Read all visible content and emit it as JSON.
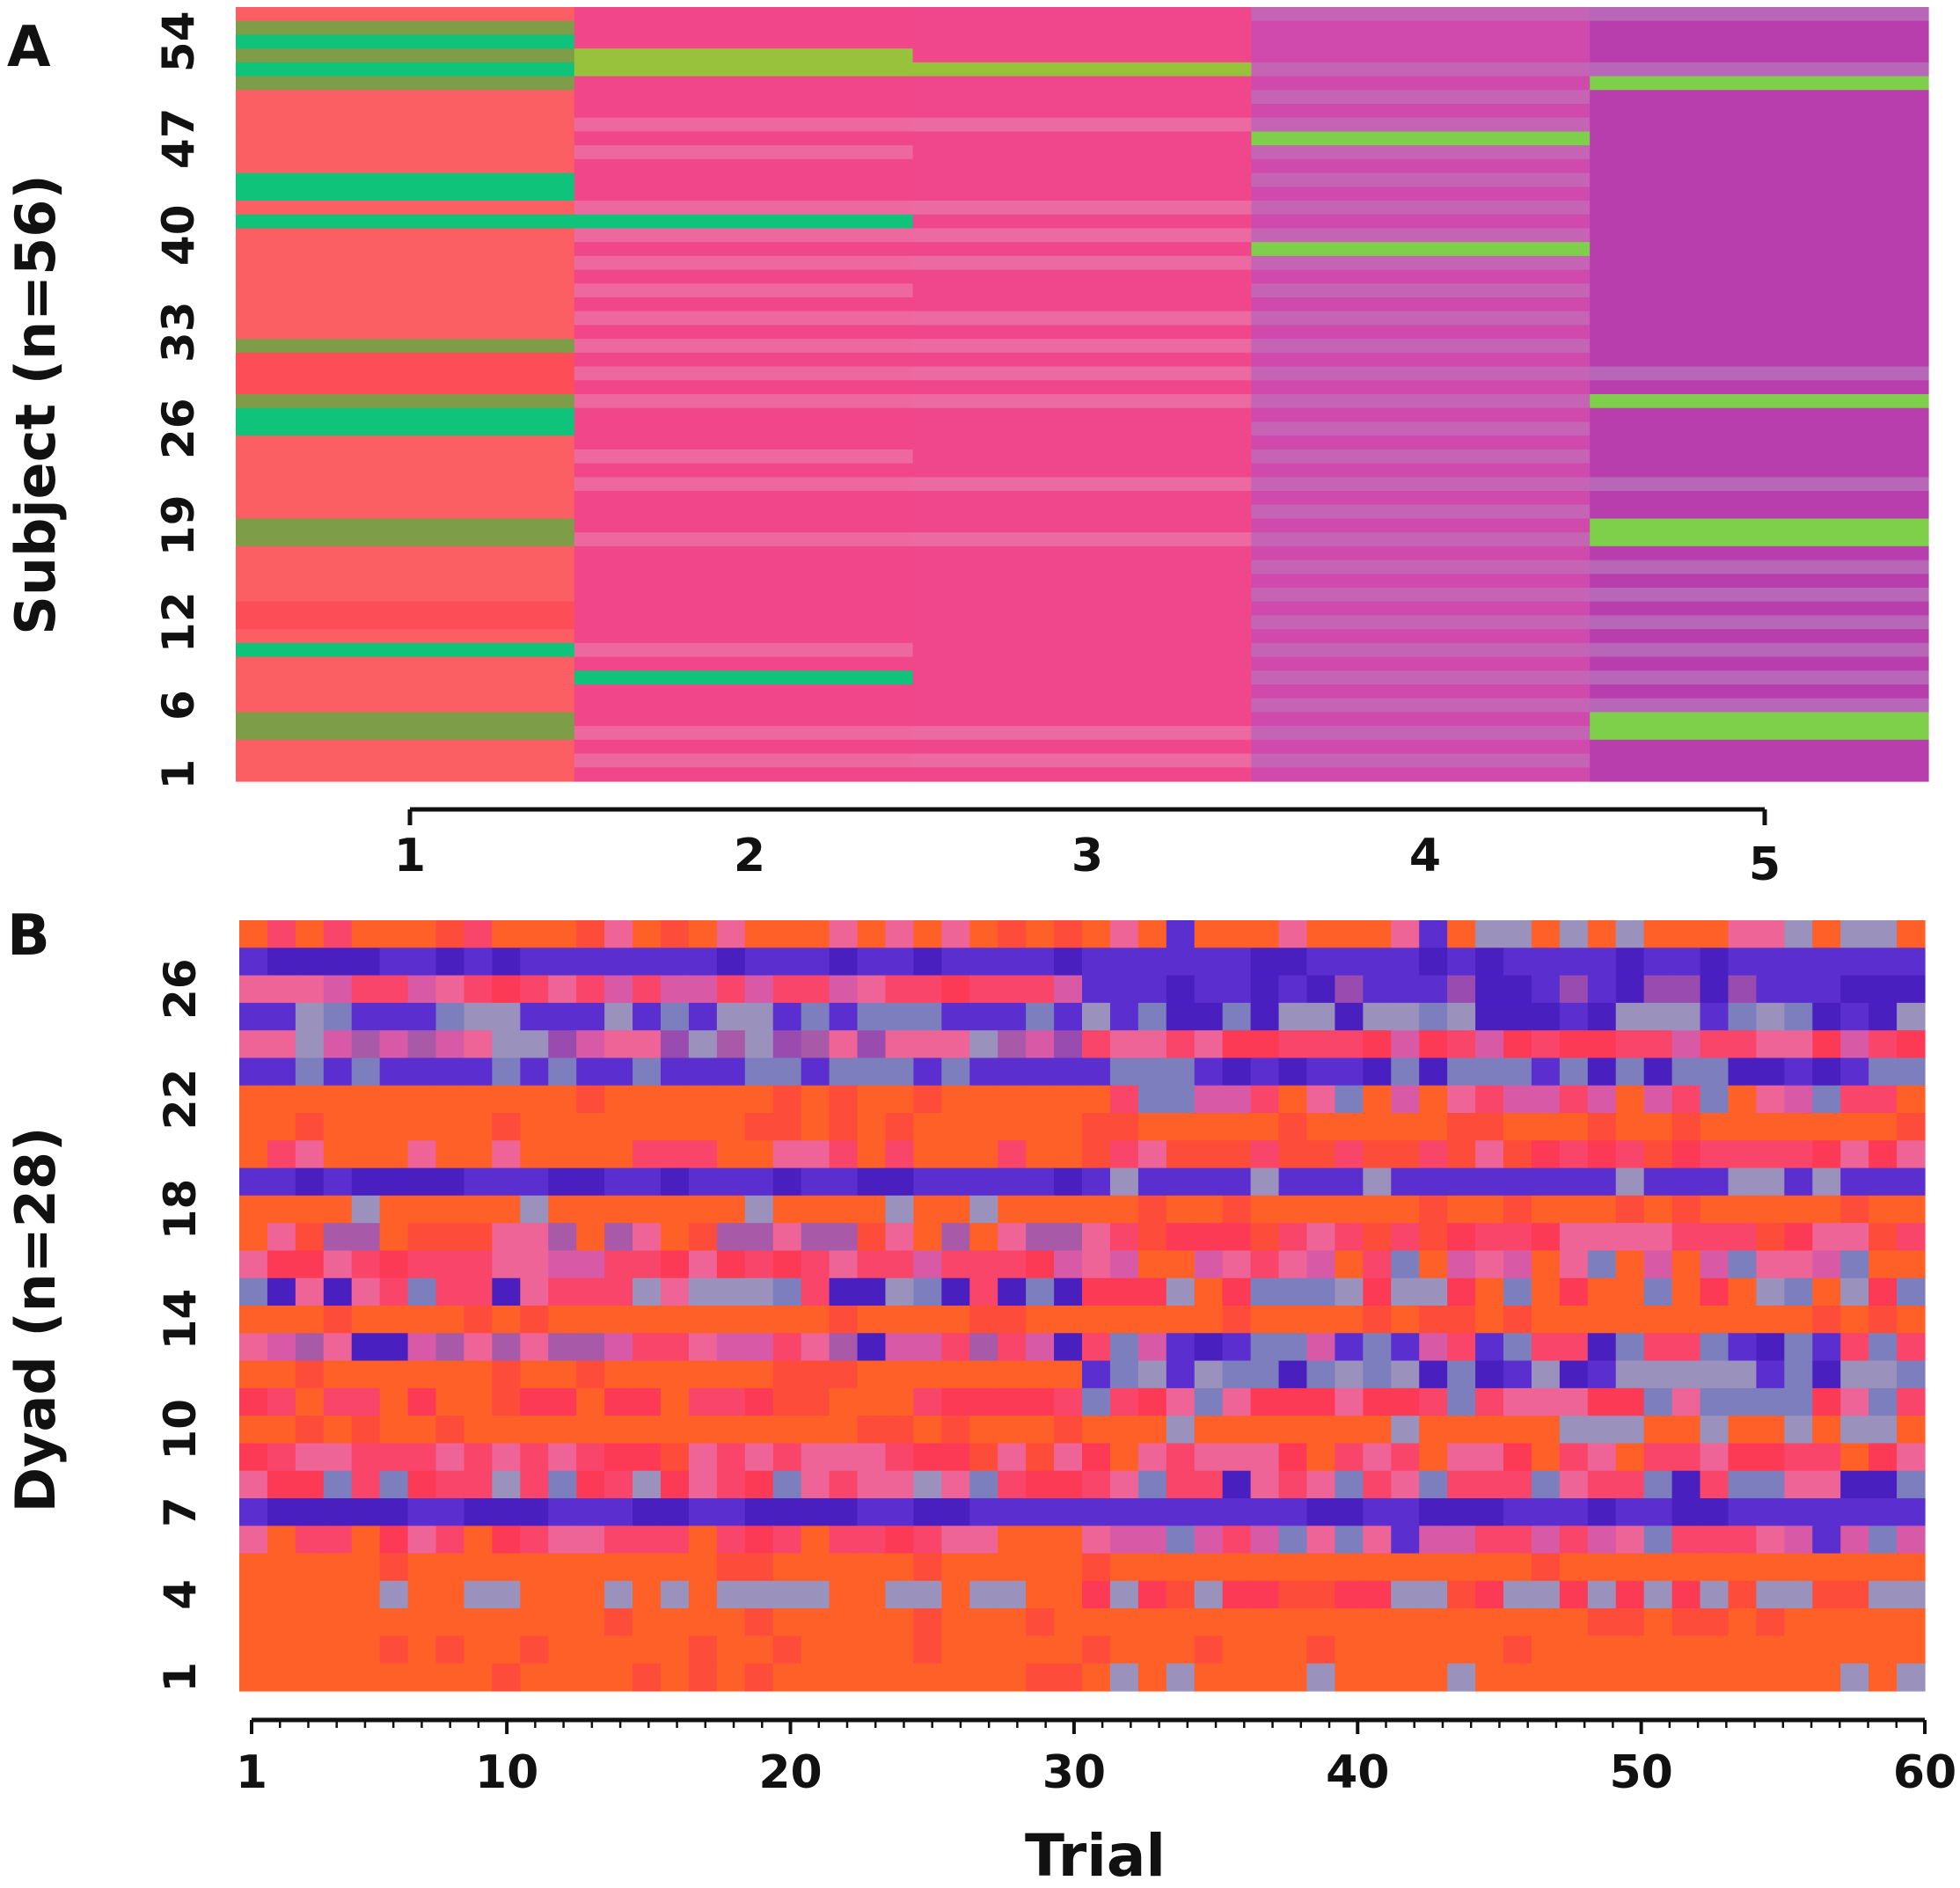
{
  "panel_a_label": "A",
  "panel_b_label": "B",
  "chart_data": [
    {
      "type": "heatmap",
      "panel": "A",
      "ylabel": "Subject (n=56)",
      "xlabel": "",
      "x_ticks": [
        "1",
        "2",
        "3",
        "4",
        "5"
      ],
      "y_ticks": [
        "1",
        "6",
        "12",
        "19",
        "26",
        "33",
        "40",
        "47",
        "54"
      ],
      "n_rows": 56,
      "n_cols": 5,
      "palette": {
        "c1_coral": "#fb5e63",
        "c1_red": "#fd4e57",
        "c1_green": "#10c37a",
        "c1_olive": "#7e9d48",
        "c2_pink": "#f2468a",
        "c2_light": "#ee68a0",
        "c2_lime": "#99c23c",
        "c2_green": "#10c37a",
        "c3_pink": "#f0478c",
        "c3_light": "#ec6aa2",
        "c3_lime": "#99c23c",
        "c4_mag": "#d04aae",
        "c4_light": "#c564b5",
        "c4_lime": "#a2c53c",
        "c4_green": "#7ed04a",
        "c5_mag": "#b83eae",
        "c5_light": "#b766b8",
        "c5_lime": "#a6c63c",
        "c5_green": "#7ed04a"
      },
      "rows_top_to_bottom": [
        "lpmll",
        "olpml",
        "grmmm",
        "odlml",
        "godll",
        "olllg",
        "lpmlm",
        "clllm",
        "clllm",
        "clldm",
        "clplm",
        "clmlm",
        "gpmlm",
        "gpmlm",
        "clllm",
        "ggmlm",
        "clllm",
        "clldm",
        "clllm",
        "cllml",
        "clmlm",
        "clllm",
        "clllm",
        "crmlm",
        "olllm",
        "rllll",
        "rllll",
        "rllll",
        "olllg",
        "gpmll",
        "gpmlm",
        "cpmlm",
        "clmlm",
        "clllm",
        "cllll",
        "crmlm",
        "ccmlm",
        "olllg",
        "olllg",
        "cllml",
        "cppll",
        "ccpll",
        "crpll",
        "rppll",
        "rpmll",
        "cpmll",
        "gsmll",
        "cpmll",
        "cgmll",
        "cpmll",
        "cpmll",
        "olllg",
        "olllg",
        "cllll",
        "clllm",
        "clmml"
      ]
    },
    {
      "type": "heatmap",
      "panel": "B",
      "ylabel": "Dyad (n=28)",
      "xlabel": "Trial",
      "x_ticks": [
        "1",
        "10",
        "20",
        "30",
        "40",
        "50",
        "60"
      ],
      "y_ticks": [
        "1",
        "4",
        "7",
        "10",
        "14",
        "18",
        "22",
        "26"
      ],
      "n_rows": 28,
      "n_cols": 60,
      "palette": {
        "orange": "#fe6028",
        "redorange": "#fe4c3a",
        "red": "#fd3a55",
        "pinkred": "#f9456a",
        "pink": "#ee6496",
        "magenta": "#d85aa6",
        "purplemag": "#a85aa8",
        "blue": "#5b2fcf",
        "navy": "#4a1fc0",
        "slate": "#7d7ebd",
        "grey": "#9a91bd",
        "violet": "#9a4bb0"
      },
      "switch_trial": 31,
      "rows_top_to_bottom": [
        {
          "base": "orange",
          "seg1": "mixed_warm_pink",
          "seg2": "orange_with_blue_grey_specks"
        },
        {
          "base": "blue",
          "seg1": "blue",
          "seg2": "blue"
        },
        {
          "base": "pink",
          "seg1": "pink_red_mixed",
          "seg2": "blue_purple"
        },
        {
          "base": "blue",
          "seg1": "grey_then_blue",
          "seg2": "blue_grey_mixed"
        },
        {
          "base": "pink",
          "seg1": "pink_purple_grey_mixed",
          "seg2": "pink_red_mixed"
        },
        {
          "base": "blue",
          "seg1": "slate_then_blue",
          "seg2": "blue_then_slate"
        },
        {
          "base": "orange",
          "seg1": "orange",
          "seg2": "pink_slate_mixed"
        },
        {
          "base": "orange",
          "seg1": "orange",
          "seg2": "orange"
        },
        {
          "base": "orange",
          "seg1": "orange_with_pink",
          "seg2": "red_pink_mixed"
        },
        {
          "base": "blue",
          "seg1": "blue",
          "seg2": "blue_grey"
        },
        {
          "base": "orange",
          "seg1": "grey_then_orange",
          "seg2": "orange"
        },
        {
          "base": "orange",
          "seg1": "orange_with_pink_purple",
          "seg2": "red_pink_mixed"
        },
        {
          "base": "pink",
          "seg1": "pink_red_mixed",
          "seg2": "pink_slate_mixed"
        },
        {
          "base": "slate",
          "seg1": "grey_pink_mixed",
          "seg2": "grey_slate_mixed"
        },
        {
          "base": "orange",
          "seg1": "orange",
          "seg2": "orange"
        },
        {
          "base": "pink",
          "seg1": "pink_purple_mixed",
          "seg2": "blue_pink_mixed"
        },
        {
          "base": "orange",
          "seg1": "orange",
          "seg2": "blue_grey_mixed"
        },
        {
          "base": "red",
          "seg1": "red_mixed",
          "seg2": "red_pink_grey"
        },
        {
          "base": "orange",
          "seg1": "orange",
          "seg2": "grey_then_orange"
        },
        {
          "base": "red",
          "seg1": "red_pink_mixed",
          "seg2": "pink_mixed"
        },
        {
          "base": "pink",
          "seg1": "pink_grey_mixed",
          "seg2": "slate_pink_mixed"
        },
        {
          "base": "blue",
          "seg1": "blue",
          "seg2": "blue"
        },
        {
          "base": "pink",
          "seg1": "pink_mixed",
          "seg2": "blue_slate_pink"
        },
        {
          "base": "orange",
          "seg1": "orange",
          "seg2": "orange"
        },
        {
          "base": "orange",
          "seg1": "orange_grey",
          "seg2": "grey_red"
        },
        {
          "base": "orange",
          "seg1": "orange",
          "seg2": "orange"
        },
        {
          "base": "orange",
          "seg1": "orange",
          "seg2": "orange"
        },
        {
          "base": "orange",
          "seg1": "orange",
          "seg2": "grey_then_orange"
        }
      ]
    }
  ]
}
